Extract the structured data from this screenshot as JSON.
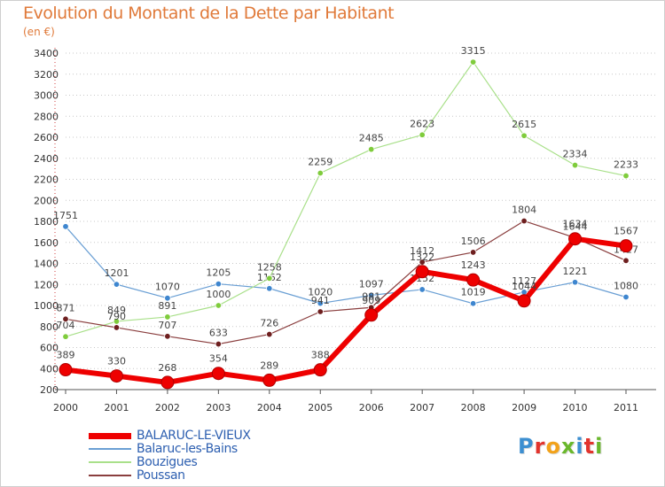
{
  "title": "Evolution du Montant de la Dette par Habitant",
  "unit_label": "(en €)",
  "logo_text": "Proxiti",
  "logo_colors": [
    "#3d8fd1",
    "#e2342d",
    "#f2a21a",
    "#6ab82c",
    "#3d8fd1",
    "#e2342d",
    "#6ab82c"
  ],
  "chart_data": {
    "type": "line",
    "title": "Evolution du Montant de la Dette par Habitant",
    "ylabel": "(en €)",
    "xlabel": "",
    "x": [
      "2000",
      "2001",
      "2002",
      "2003",
      "2004",
      "2005",
      "2006",
      "2007",
      "2008",
      "2009",
      "2010",
      "2011"
    ],
    "ylim": [
      200,
      3400
    ],
    "yticks": [
      200,
      400,
      600,
      800,
      1000,
      1200,
      1400,
      1600,
      1800,
      2000,
      2200,
      2400,
      2600,
      2800,
      3000,
      3200,
      3400
    ],
    "grid": "horizontal dotted",
    "legend_position": "bottom-left",
    "series": [
      {
        "name": "Balaruc-les-Bains",
        "color": "#6a9fd4",
        "marker_color": "#3e86cf",
        "line_width": 1.2,
        "values": [
          1751,
          1201,
          1070,
          1205,
          1162,
          1020,
          1097,
          1152,
          1019,
          1127,
          1221,
          1080
        ],
        "labels": [
          "1751",
          "1201",
          "1070",
          "1205",
          "1162",
          "1020",
          "1097",
          "1152",
          "1019",
          "1127",
          "1221",
          "1080"
        ]
      },
      {
        "name": "Bouzigues",
        "color": "#a9e08a",
        "marker_color": "#7fcc3c",
        "line_width": 1.2,
        "values": [
          704,
          849,
          891,
          1000,
          1258,
          2259,
          2485,
          2623,
          3315,
          2615,
          2334,
          2233
        ],
        "labels": [
          "704",
          "849",
          "891",
          "1000",
          "1258",
          "2259",
          "2485",
          "2623",
          "3315",
          "2615",
          "2334",
          "2233"
        ]
      },
      {
        "name": "Poussan",
        "color": "#8a3e3e",
        "marker_color": "#6e1f1f",
        "line_width": 1.2,
        "values": [
          871,
          790,
          707,
          633,
          726,
          941,
          981,
          1412,
          1506,
          1804,
          1644,
          1427
        ],
        "labels": [
          "871",
          "790",
          "707",
          "633",
          "726",
          "941",
          "981",
          "1412",
          "1506",
          "1804",
          "1644",
          "1427"
        ]
      },
      {
        "name": "BALARUC-LE-VIEUX",
        "color": "#ee0000",
        "marker_color": "#ee0000",
        "line_width": 6,
        "values": [
          389,
          330,
          268,
          354,
          289,
          388,
          909,
          1322,
          1243,
          1044,
          1634,
          1567
        ],
        "labels": [
          "389",
          "330",
          "268",
          "354",
          "289",
          "388",
          "909",
          "1322",
          "1243",
          "1044",
          "1634",
          "1567"
        ]
      }
    ],
    "legend_order": [
      "BALARUC-LE-VIEUX",
      "Balaruc-les-Bains",
      "Bouzigues",
      "Poussan"
    ]
  }
}
